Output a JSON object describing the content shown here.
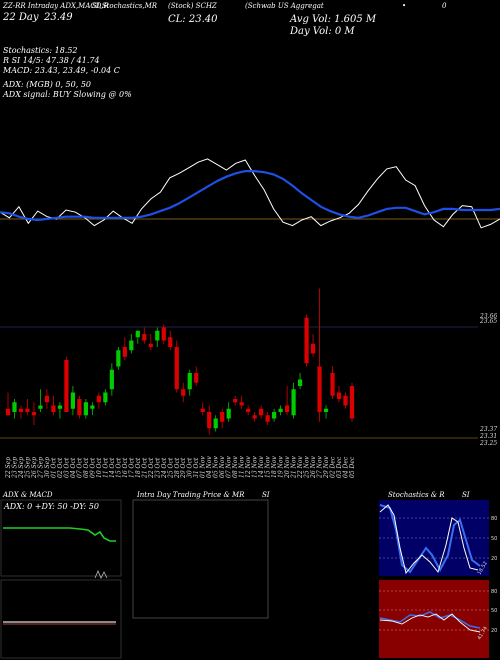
{
  "header": {
    "left_top": "ZZ-RR Intraday ADX,MACD,R",
    "mid_top": "SI,Stochastics,MR",
    "symbol_top": "(Stock) SCHZ",
    "name_top": "(Schwab US Aggregat",
    "date_label": "22 Day",
    "date_value": "23.49",
    "close_label": "CL: 23.40",
    "avg_vol": "Avg Vol: 1.605 M",
    "day_vol": "Day Vol: 0   M",
    "dot": "•",
    "right_top": "0"
  },
  "indicators": {
    "stochastics": "Stochastics: 18.52",
    "rsi": "R                SI 14/5: 47.38 / 41.74",
    "macd": "MACD: 23.43,  23.49, -0.04  C",
    "adx": "ADX:                              (MGB) 0,  50,   50",
    "adx_signal": "ADX  signal:                              BUY Slowing @ 0%"
  },
  "price_axis": {
    "levels": [
      "23.66",
      "23.65",
      "23.37",
      "23.31",
      "23.25"
    ]
  },
  "dates": [
    "22 Sep",
    "23 Sep",
    "24 Sep",
    "25 Sep",
    "26 Sep",
    "27 Sep",
    "30 Sep",
    "01 Oct",
    "02 Oct",
    "03 Oct",
    "04 Oct",
    "07 Oct",
    "08 Oct",
    "09 Oct",
    "10 Oct",
    "11 Oct",
    "14 Oct",
    "15 Oct",
    "16 Oct",
    "17 Oct",
    "18 Oct",
    "21 Oct",
    "22 Oct",
    "23 Oct",
    "24 Oct",
    "25 Oct",
    "28 Oct",
    "29 Oct",
    "30 Oct",
    "31 Oct",
    "01 Nov",
    "04 Nov",
    "05 Nov",
    "06 Nov",
    "07 Nov",
    "08 Nov",
    "11 Nov",
    "12 Nov",
    "13 Nov",
    "14 Nov",
    "15 Nov",
    "18 Nov",
    "19 Nov",
    "20 Nov",
    "21 Nov",
    "22 Nov",
    "25 Nov",
    "26 Nov",
    "27 Nov",
    "29 Nov",
    "02 Dec",
    "03 Dec",
    "04 Dec",
    "05 Dec"
  ],
  "bottom_panels": {
    "adx_title": "ADX  & MACD",
    "adx_values": "ADX: 0   +DY: 50   -DY: 50",
    "intraday_title": "Intra  Day Trading Price  & MR",
    "intraday_si": "SI",
    "stoch_title": "Stochastics & R",
    "stoch_si": "SI",
    "stoch_levels": [
      "80",
      "50",
      "20"
    ],
    "stoch_value": "18.52",
    "rsi_levels": [
      "80",
      "50",
      "20"
    ],
    "rsi_value": "41.74"
  },
  "colors": {
    "bull": "#00cc00",
    "bear": "#dd0000",
    "ma": "#1e50e6",
    "price_line": "#ffffff",
    "midline": "#7a5a1e",
    "stoch_bg": "#000066",
    "rsi_bg": "#880000"
  },
  "chart_data": {
    "type": "candlestick",
    "candles": [
      {
        "o": 23.31,
        "h": 23.36,
        "l": 23.29,
        "c": 23.29
      },
      {
        "o": 23.3,
        "h": 23.34,
        "l": 23.28,
        "c": 23.33
      },
      {
        "o": 23.31,
        "h": 23.32,
        "l": 23.28,
        "c": 23.3
      },
      {
        "o": 23.31,
        "h": 23.34,
        "l": 23.29,
        "c": 23.3
      },
      {
        "o": 23.3,
        "h": 23.33,
        "l": 23.26,
        "c": 23.29
      },
      {
        "o": 23.31,
        "h": 23.37,
        "l": 23.3,
        "c": 23.32
      },
      {
        "o": 23.35,
        "h": 23.37,
        "l": 23.31,
        "c": 23.33
      },
      {
        "o": 23.32,
        "h": 23.35,
        "l": 23.29,
        "c": 23.3
      },
      {
        "o": 23.31,
        "h": 23.33,
        "l": 23.28,
        "c": 23.32
      },
      {
        "o": 23.46,
        "h": 23.47,
        "l": 23.3,
        "c": 23.3
      },
      {
        "o": 23.31,
        "h": 23.38,
        "l": 23.29,
        "c": 23.36
      },
      {
        "o": 23.34,
        "h": 23.35,
        "l": 23.28,
        "c": 23.29
      },
      {
        "o": 23.29,
        "h": 23.34,
        "l": 23.28,
        "c": 23.33
      },
      {
        "o": 23.31,
        "h": 23.33,
        "l": 23.29,
        "c": 23.32
      },
      {
        "o": 23.35,
        "h": 23.36,
        "l": 23.31,
        "c": 23.33
      },
      {
        "o": 23.33,
        "h": 23.37,
        "l": 23.32,
        "c": 23.36
      },
      {
        "o": 23.37,
        "h": 23.45,
        "l": 23.35,
        "c": 23.43
      },
      {
        "o": 23.44,
        "h": 23.5,
        "l": 23.43,
        "c": 23.49
      },
      {
        "o": 23.5,
        "h": 23.53,
        "l": 23.46,
        "c": 23.47
      },
      {
        "o": 23.49,
        "h": 23.54,
        "l": 23.48,
        "c": 23.52
      },
      {
        "o": 23.53,
        "h": 23.55,
        "l": 23.51,
        "c": 23.55
      },
      {
        "o": 23.54,
        "h": 23.56,
        "l": 23.51,
        "c": 23.52
      },
      {
        "o": 23.51,
        "h": 23.54,
        "l": 23.49,
        "c": 23.5
      },
      {
        "o": 23.52,
        "h": 23.56,
        "l": 23.5,
        "c": 23.55
      },
      {
        "o": 23.56,
        "h": 23.57,
        "l": 23.51,
        "c": 23.52
      },
      {
        "o": 23.53,
        "h": 23.55,
        "l": 23.49,
        "c": 23.5
      },
      {
        "o": 23.5,
        "h": 23.52,
        "l": 23.36,
        "c": 23.37
      },
      {
        "o": 23.37,
        "h": 23.39,
        "l": 23.33,
        "c": 23.35
      },
      {
        "o": 23.37,
        "h": 23.43,
        "l": 23.35,
        "c": 23.42
      },
      {
        "o": 23.42,
        "h": 23.44,
        "l": 23.38,
        "c": 23.39
      },
      {
        "o": 23.31,
        "h": 23.33,
        "l": 23.29,
        "c": 23.3
      },
      {
        "o": 23.3,
        "h": 23.32,
        "l": 23.23,
        "c": 23.25
      },
      {
        "o": 23.25,
        "h": 23.29,
        "l": 23.24,
        "c": 23.28
      },
      {
        "o": 23.3,
        "h": 23.31,
        "l": 23.25,
        "c": 23.27
      },
      {
        "o": 23.28,
        "h": 23.33,
        "l": 23.27,
        "c": 23.31
      },
      {
        "o": 23.34,
        "h": 23.35,
        "l": 23.32,
        "c": 23.33
      },
      {
        "o": 23.33,
        "h": 23.35,
        "l": 23.31,
        "c": 23.32
      },
      {
        "o": 23.31,
        "h": 23.32,
        "l": 23.29,
        "c": 23.3
      },
      {
        "o": 23.29,
        "h": 23.3,
        "l": 23.27,
        "c": 23.28
      },
      {
        "o": 23.31,
        "h": 23.32,
        "l": 23.28,
        "c": 23.29
      },
      {
        "o": 23.29,
        "h": 23.3,
        "l": 23.26,
        "c": 23.27
      },
      {
        "o": 23.28,
        "h": 23.31,
        "l": 23.27,
        "c": 23.3
      },
      {
        "o": 23.3,
        "h": 23.32,
        "l": 23.29,
        "c": 23.31
      },
      {
        "o": 23.32,
        "h": 23.38,
        "l": 23.29,
        "c": 23.3
      },
      {
        "o": 23.29,
        "h": 23.39,
        "l": 23.28,
        "c": 23.37
      },
      {
        "o": 23.38,
        "h": 23.42,
        "l": 23.37,
        "c": 23.4
      },
      {
        "o": 23.59,
        "h": 23.6,
        "l": 23.44,
        "c": 23.45
      },
      {
        "o": 23.51,
        "h": 23.54,
        "l": 23.47,
        "c": 23.48
      },
      {
        "o": 23.44,
        "h": 23.68,
        "l": 23.27,
        "c": 23.3
      },
      {
        "o": 23.3,
        "h": 23.32,
        "l": 23.28,
        "c": 23.31
      },
      {
        "o": 23.42,
        "h": 23.44,
        "l": 23.34,
        "c": 23.35
      },
      {
        "o": 23.36,
        "h": 23.38,
        "l": 23.33,
        "c": 23.34
      },
      {
        "o": 23.35,
        "h": 23.36,
        "l": 23.31,
        "c": 23.32
      },
      {
        "o": 23.38,
        "h": 23.39,
        "l": 23.27,
        "c": 23.28
      }
    ],
    "ylim": [
      23.22,
      23.7
    ],
    "ma_line": [
      30.5,
      30.4,
      30.1,
      29.9,
      29.8,
      29.9,
      30.0,
      30.1,
      30.1,
      30.1,
      30.0,
      30.0,
      30.0,
      30.0,
      30.0,
      30.1,
      30.3,
      30.6,
      30.9,
      31.3,
      31.8,
      32.3,
      32.8,
      33.3,
      33.7,
      34.0,
      34.2,
      34.2,
      34.1,
      33.9,
      33.5,
      32.9,
      32.2,
      31.6,
      31.0,
      30.6,
      30.3,
      30.1,
      30.0,
      30.2,
      30.5,
      30.8,
      30.9,
      30.9,
      30.6,
      30.3,
      30.5,
      30.8,
      30.8,
      30.7,
      30.7,
      30.7,
      30.7,
      30.8
    ],
    "price_line": [
      30.5,
      30.0,
      31.0,
      29.5,
      30.6,
      30.1,
      29.9,
      30.7,
      30.5,
      30.0,
      29.3,
      29.8,
      30.6,
      30.0,
      29.5,
      30.8,
      31.7,
      32.3,
      33.6,
      34.0,
      34.5,
      35.0,
      35.3,
      34.8,
      34.3,
      34.9,
      35.2,
      33.8,
      32.5,
      30.8,
      29.6,
      29.3,
      29.8,
      30.1,
      29.3,
      29.7,
      30.0,
      30.4,
      31.2,
      32.4,
      33.5,
      34.4,
      34.6,
      33.4,
      32.9,
      31.1,
      29.8,
      29.2,
      30.3,
      31.1,
      31.0,
      29.1,
      29.4,
      29.9
    ],
    "ma_ylim": [
      28,
      37
    ]
  }
}
